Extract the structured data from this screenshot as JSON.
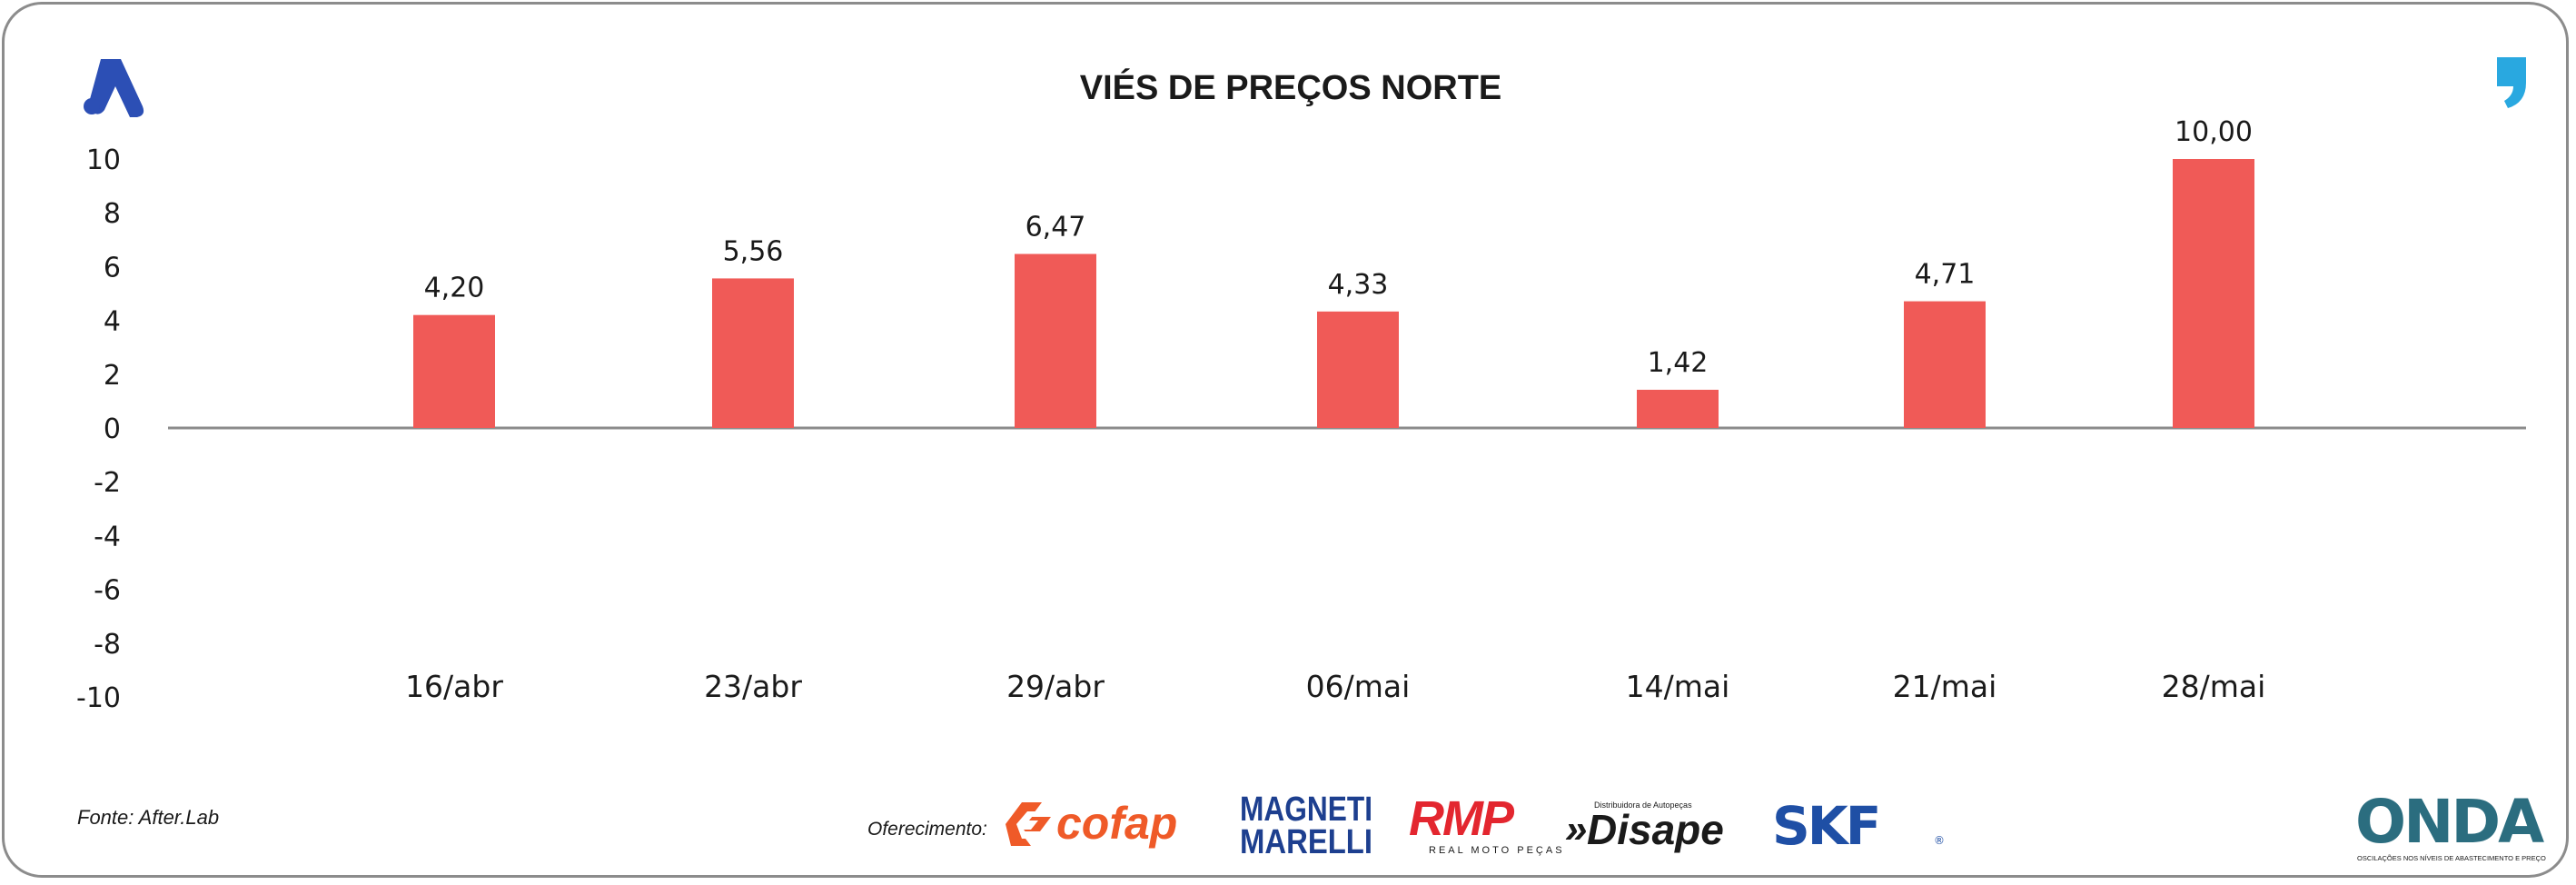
{
  "chart_data": {
    "type": "bar",
    "title": "VIÉS DE PREÇOS NORTE",
    "categories": [
      "16/abr",
      "23/abr",
      "29/abr",
      "06/mai",
      "14/mai",
      "21/mai",
      "28/mai"
    ],
    "values": [
      4.2,
      5.56,
      6.47,
      4.33,
      1.42,
      4.71,
      10.0
    ],
    "value_labels": [
      "4,20",
      "5,56",
      "6,47",
      "4,33",
      "1,42",
      "4,71",
      "10,00"
    ],
    "ylim": [
      -10,
      10
    ],
    "yticks": [
      10,
      8,
      6,
      4,
      2,
      0,
      -2,
      -4,
      -6,
      -8,
      -10
    ],
    "ytick_labels": [
      "10",
      "8",
      "6",
      "4",
      "2",
      "0",
      "-2",
      "-4",
      "-6",
      "-8",
      "-10"
    ],
    "bar_color": "#f05a57",
    "grid": false,
    "legend": "none"
  },
  "footer": {
    "source": "Fonte: After.Lab",
    "sponsor_label": "Oferecimento:",
    "sponsors": [
      {
        "name": "cofap",
        "color": "#ef5a28"
      },
      {
        "name": "MAGNETI MARELLI",
        "color": "#1d3f8f"
      },
      {
        "name": "RMP",
        "subtitle": "REAL MOTO PEÇAS",
        "color": "#e3262f"
      },
      {
        "name": "Disape",
        "tagline": "Distribuidora de Autopeças",
        "color": "#1a1a1a"
      },
      {
        "name": "SKF",
        "color": "#1f4fa5"
      }
    ]
  },
  "logos": {
    "left_icon": "a-logo-icon",
    "right_icon": "quote-mark-icon",
    "onda": {
      "name": "ONDA",
      "tagline": "OSCILAÇÕES NOS NÍVEIS DE ABASTECIMENTO E PREÇO",
      "color": "#2b6d7f"
    }
  },
  "colors": {
    "accent_blue": "#2c4fb5",
    "accent_cyan": "#29a8e0",
    "frame": "#8c8c8c",
    "axis": "#8c8c8c"
  }
}
